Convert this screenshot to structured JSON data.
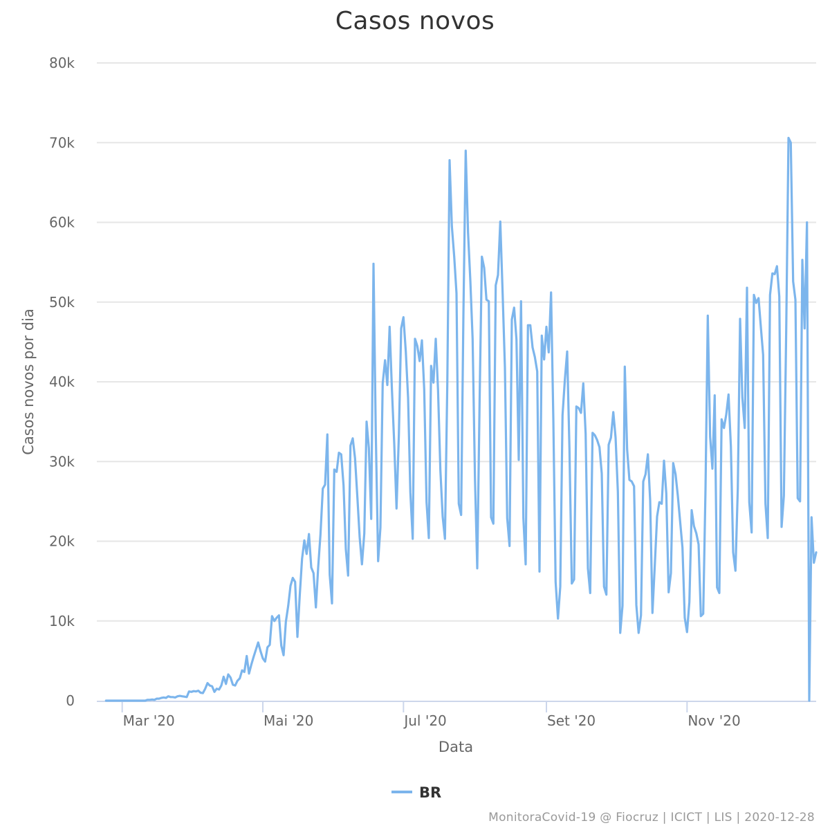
{
  "chart_data": {
    "type": "line",
    "title": "Casos novos",
    "xlabel": "Data",
    "ylabel": "Casos novos por dia",
    "ylim": [
      0,
      80000
    ],
    "y_ticks": [
      0,
      10000,
      20000,
      30000,
      40000,
      50000,
      60000,
      70000,
      80000
    ],
    "y_tick_labels": [
      "0",
      "10k",
      "20k",
      "30k",
      "40k",
      "50k",
      "60k",
      "70k",
      "80k"
    ],
    "x_range": [
      "2020-02-19",
      "2020-12-27"
    ],
    "x_ticks": [
      "2020-03-01",
      "2020-05-01",
      "2020-07-01",
      "2020-09-01",
      "2020-11-01"
    ],
    "x_tick_labels": [
      "Mar '20",
      "Mai '20",
      "Jul '20",
      "Set '20",
      "Nov '20"
    ],
    "grid": true,
    "legend_position": "bottom-center",
    "colors": {
      "series": "#7cb5ec",
      "grid": "#e6e6e6",
      "axis": "#ccd6eb",
      "text": "#666666"
    },
    "series": [
      {
        "name": "BR",
        "start_date": "2020-02-23",
        "values": [
          0,
          0,
          0,
          0,
          0,
          0,
          0,
          0,
          0,
          0,
          0,
          0,
          0,
          0,
          0,
          0,
          0,
          0,
          100,
          100,
          150,
          100,
          250,
          250,
          350,
          400,
          350,
          550,
          450,
          450,
          400,
          550,
          600,
          550,
          500,
          450,
          1150,
          1100,
          1200,
          1150,
          1250,
          1000,
          950,
          1500,
          2200,
          1900,
          1800,
          1100,
          1500,
          1400,
          1900,
          3000,
          2100,
          3300,
          2900,
          2000,
          1900,
          2500,
          2800,
          3800,
          3600,
          5600,
          3400,
          4500,
          5500,
          6400,
          7300,
          6200,
          5300,
          4900,
          6700,
          7000,
          10600,
          10000,
          10400,
          10700,
          6900,
          5700,
          9900,
          11900,
          14400,
          15400,
          14900,
          8000,
          13100,
          17800,
          20100,
          18400,
          20900,
          16700,
          16000,
          11700,
          16700,
          20800,
          26600,
          27100,
          33400,
          15800,
          12200,
          29000,
          28700,
          31100,
          30900,
          27000,
          19000,
          15700,
          32000,
          32900,
          30400,
          25500,
          20500,
          17100,
          21000,
          35000,
          31700,
          22800,
          54800,
          33600,
          17500,
          21700,
          39800,
          42700,
          39600,
          46900,
          38900,
          32200,
          24100,
          33400,
          46700,
          48100,
          43800,
          38000,
          26100,
          20300,
          45400,
          44500,
          42600,
          45200,
          39100,
          24900,
          20400,
          42000,
          39900,
          45400,
          39000,
          28900,
          23100,
          20300,
          39700,
          67800,
          59500,
          55700,
          51100,
          24700,
          23300,
          48500,
          69000,
          58700,
          52700,
          45400,
          27900,
          16600,
          37000,
          55700,
          54300,
          50300,
          50100,
          23000,
          22200,
          52100,
          53400,
          60100,
          51100,
          41800,
          22900,
          19400,
          47800,
          49300,
          45300,
          30200,
          50100,
          22900,
          17100,
          47100,
          47100,
          44300,
          43100,
          41300,
          16200,
          45800,
          42800,
          46900,
          43700,
          51200,
          35300,
          14900,
          10300,
          14300,
          35800,
          40300,
          43800,
          31600,
          14700,
          15200,
          36900,
          36700,
          36100,
          39800,
          33500,
          16600,
          13500,
          33600,
          33300,
          32700,
          31800,
          28500,
          14300,
          13300,
          32100,
          33000,
          36200,
          33000,
          26200,
          8500,
          11900,
          41900,
          31500,
          27700,
          27500,
          26900,
          12000,
          8500,
          10700,
          27500,
          28400,
          30900,
          25100,
          11000,
          17000,
          23100,
          24900,
          24700,
          30100,
          26000,
          13600,
          16000,
          29800,
          28400,
          25700,
          22500,
          19200,
          10400,
          8600,
          12400,
          23900,
          21900,
          21000,
          19600,
          10600,
          10900,
          26500,
          48300,
          33100,
          29100,
          38300,
          14200,
          13500,
          35300,
          34200,
          35900,
          38400,
          31900,
          18600,
          16300,
          26600,
          47900,
          38000,
          34200,
          51800,
          24900,
          21100,
          50900,
          49900,
          50500,
          46900,
          43400,
          24700,
          20400,
          50900,
          53600,
          53500,
          54500,
          50700,
          21800,
          25700,
          46500,
          70600,
          70000,
          52600,
          50300,
          25400,
          25000,
          55300,
          46700,
          60000,
          0,
          23000,
          17300,
          18600
        ]
      }
    ]
  },
  "credits": "MonitoraCovid-19 @ Fiocruz | ICICT | LIS | 2020-12-28"
}
